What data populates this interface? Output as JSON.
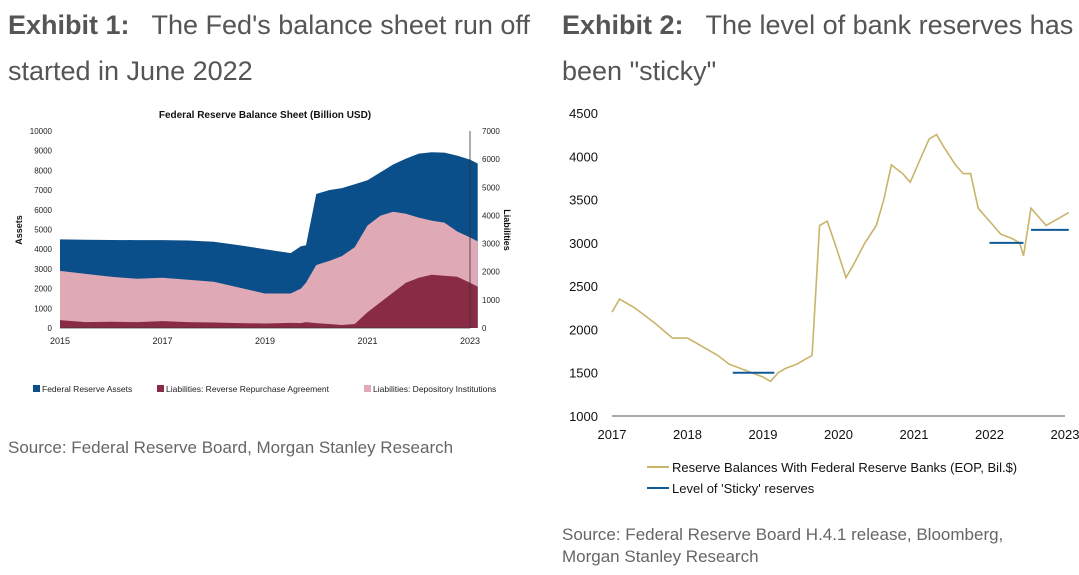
{
  "exhibit1": {
    "label": "Exhibit 1:",
    "headline": "The Fed's balance sheet run off started in June 2022",
    "source": "Source: Federal Reserve Board, Morgan Stanley Research"
  },
  "exhibit2": {
    "label": "Exhibit 2:",
    "headline": "The level of bank reserves has been \"sticky\"",
    "source": "Source: Federal Reserve Board H.4.1 release, Bloomberg, Morgan Stanley Research"
  },
  "chart_data": [
    {
      "type": "area",
      "title": "Federal Reserve Balance Sheet (Billion USD)",
      "ylabel": "Assets",
      "y2label": "Liabilities",
      "ylim": [
        0,
        10000
      ],
      "y2lim": [
        0,
        7000
      ],
      "x_ticks": [
        "2015",
        "2017",
        "2019",
        "2021",
        "2023"
      ],
      "y_ticks": [
        "0",
        "1000",
        "2000",
        "3000",
        "4000",
        "5000",
        "6000",
        "7000",
        "8000",
        "9000",
        "10000"
      ],
      "y2_ticks": [
        "0",
        "1000",
        "2000",
        "3000",
        "4000",
        "5000",
        "6000",
        "7000"
      ],
      "x": [
        2015.0,
        2015.5,
        2016.0,
        2016.5,
        2017.0,
        2017.5,
        2018.0,
        2018.5,
        2019.0,
        2019.5,
        2019.7,
        2019.8,
        2020.0,
        2020.25,
        2020.5,
        2020.75,
        2021.0,
        2021.25,
        2021.5,
        2021.75,
        2022.0,
        2022.25,
        2022.5,
        2022.75,
        2023.0,
        2023.15
      ],
      "series": [
        {
          "name": "Federal Reserve Assets",
          "color": "#0b4f8a",
          "values": [
            4500,
            4480,
            4470,
            4460,
            4460,
            4440,
            4380,
            4200,
            4000,
            3800,
            4150,
            4200,
            6800,
            7000,
            7100,
            7300,
            7500,
            7900,
            8300,
            8600,
            8850,
            8920,
            8900,
            8750,
            8550,
            8350
          ]
        },
        {
          "name": "Liabilities: Depository Institutions",
          "color": "#dfa9b6",
          "values": [
            2900,
            2750,
            2600,
            2500,
            2550,
            2450,
            2350,
            2050,
            1750,
            1750,
            2000,
            2300,
            3200,
            3400,
            3650,
            4100,
            5200,
            5700,
            5900,
            5800,
            5600,
            5450,
            5350,
            4900,
            4600,
            4400
          ]
        },
        {
          "name": "Liabilities: Reverse Repurchase Agreement",
          "color": "#8a2b45",
          "values": [
            400,
            300,
            320,
            300,
            350,
            300,
            280,
            250,
            230,
            260,
            250,
            300,
            250,
            200,
            150,
            200,
            800,
            1300,
            1800,
            2300,
            2550,
            2700,
            2650,
            2600,
            2300,
            2100
          ]
        }
      ],
      "legend": "bottom"
    },
    {
      "type": "line",
      "xlabel": "",
      "ylabel": "",
      "xlim": [
        2017,
        2023
      ],
      "ylim": [
        1000,
        4500
      ],
      "x_ticks": [
        "2017",
        "2018",
        "2019",
        "2020",
        "2021",
        "2022",
        "2023"
      ],
      "y_ticks": [
        "1000",
        "1500",
        "2000",
        "2500",
        "3000",
        "3500",
        "4000",
        "4500"
      ],
      "series": [
        {
          "name": "Reserve Balances With Federal Reserve Banks (EOP, Bil.$)",
          "color": "#c9b46a",
          "x": [
            2017.0,
            2017.1,
            2017.2,
            2017.3,
            2017.45,
            2017.6,
            2017.8,
            2018.0,
            2018.2,
            2018.4,
            2018.55,
            2018.7,
            2018.85,
            2019.0,
            2019.1,
            2019.2,
            2019.3,
            2019.45,
            2019.55,
            2019.65,
            2019.75,
            2019.85,
            2019.95,
            2020.1,
            2020.2,
            2020.35,
            2020.5,
            2020.6,
            2020.7,
            2020.85,
            2020.95,
            2021.1,
            2021.2,
            2021.3,
            2021.4,
            2021.55,
            2021.65,
            2021.75,
            2021.85,
            2021.95,
            2022.05,
            2022.15,
            2022.3,
            2022.4,
            2022.45,
            2022.55,
            2022.65,
            2022.75,
            2022.85,
            2022.95,
            2023.05
          ],
          "values": [
            2200,
            2350,
            2300,
            2250,
            2150,
            2050,
            1900,
            1900,
            1800,
            1700,
            1600,
            1550,
            1500,
            1450,
            1400,
            1500,
            1550,
            1600,
            1650,
            1700,
            3200,
            3250,
            3000,
            2600,
            2750,
            3000,
            3200,
            3500,
            3900,
            3800,
            3700,
            4000,
            4200,
            4250,
            4100,
            3900,
            3800,
            3800,
            3400,
            3300,
            3200,
            3100,
            3050,
            3000,
            2850,
            3400,
            3300,
            3200,
            3250,
            3300,
            3350
          ]
        },
        {
          "name": "Level of 'Sticky' reserves",
          "color": "#0f5a96",
          "segments": [
            {
              "x": [
                2018.6,
                2019.15
              ],
              "values": [
                1500,
                1500
              ]
            },
            {
              "x": [
                2022.0,
                2022.45
              ],
              "values": [
                3000,
                3000
              ]
            },
            {
              "x": [
                2022.55,
                2023.05
              ],
              "values": [
                3150,
                3150
              ]
            }
          ]
        }
      ],
      "legend": "bottom"
    }
  ]
}
